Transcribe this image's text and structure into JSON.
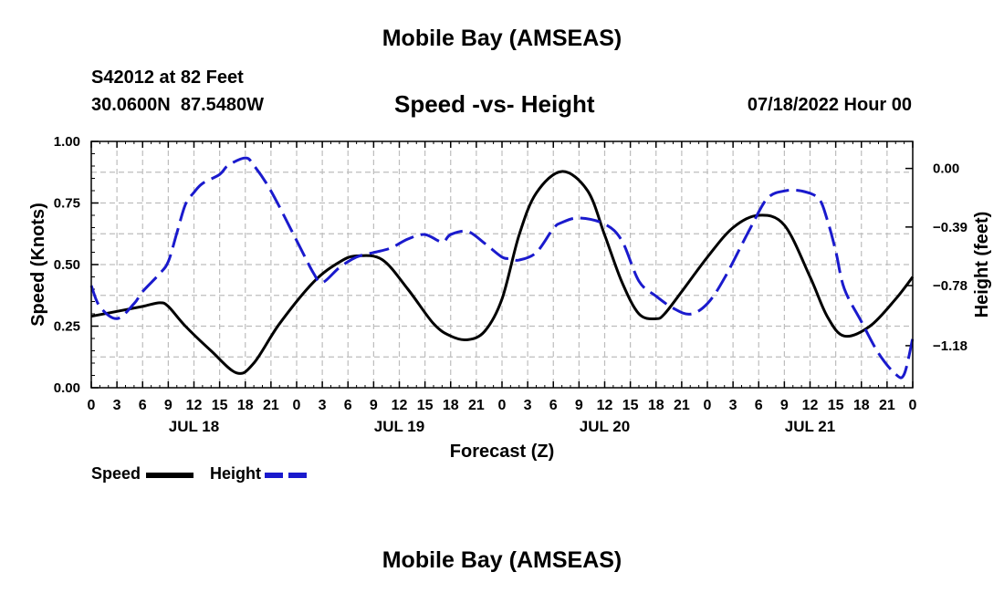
{
  "header": {
    "title": "Mobile Bay (AMSEAS)",
    "station": "S42012 at 82 Feet",
    "location": "30.0600N  87.5480W",
    "subtitle": "Speed -vs- Height",
    "timestamp": "07/18/2022 Hour 00",
    "footer_title": "Mobile Bay (AMSEAS)"
  },
  "legend": {
    "speed_label": "Speed",
    "height_label": "Height"
  },
  "chart_data": {
    "type": "line",
    "title": "Speed -vs- Height",
    "xlabel": "Forecast (Z)",
    "ylabel": "Speed (Knots)",
    "ylabel_right": "Height (feet)",
    "x_hours_range": [
      0,
      96
    ],
    "ylim": [
      0,
      1
    ],
    "ylim_right": [
      -1.46,
      0.18
    ],
    "grid": true,
    "x_tick_labels": [
      "0",
      "3",
      "6",
      "9",
      "12",
      "15",
      "18",
      "21",
      "0",
      "3",
      "6",
      "9",
      "12",
      "15",
      "18",
      "21",
      "0",
      "3",
      "6",
      "9",
      "12",
      "15",
      "18",
      "21",
      "0",
      "3",
      "6",
      "9",
      "12",
      "15",
      "18",
      "21",
      "0"
    ],
    "day_labels": [
      {
        "label": "JUL 18",
        "hour": 12
      },
      {
        "label": "JUL 19",
        "hour": 36
      },
      {
        "label": "JUL 20",
        "hour": 60
      },
      {
        "label": "JUL 21",
        "hour": 84
      }
    ],
    "y_ticks": [
      0.0,
      0.25,
      0.5,
      0.75,
      1.0
    ],
    "y_tick_labels": [
      "0.00",
      "0.25",
      "0.50",
      "0.75",
      "1.00"
    ],
    "y_ticks_right": [
      0.0,
      -0.39,
      -0.78,
      -1.18
    ],
    "y_tick_labels_right": [
      "0.00",
      "−0.39",
      "−0.78",
      "−1.18"
    ],
    "series": [
      {
        "name": "Speed",
        "axis": "left",
        "color": "#000000",
        "dash": "solid",
        "x": [
          0,
          3,
          6,
          8,
          9,
          11,
          14,
          17,
          19,
          22,
          26,
          29,
          31,
          34,
          37,
          40,
          42,
          44,
          46,
          48,
          50,
          52,
          55,
          58,
          60,
          62,
          64,
          66,
          67,
          69,
          72,
          75,
          78,
          81,
          84,
          86,
          88,
          91,
          94,
          96
        ],
        "y": [
          0.29,
          0.31,
          0.33,
          0.345,
          0.33,
          0.25,
          0.15,
          0.06,
          0.1,
          0.26,
          0.43,
          0.51,
          0.535,
          0.52,
          0.4,
          0.26,
          0.21,
          0.195,
          0.23,
          0.36,
          0.62,
          0.79,
          0.878,
          0.8,
          0.62,
          0.43,
          0.3,
          0.28,
          0.3,
          0.39,
          0.53,
          0.65,
          0.7,
          0.66,
          0.45,
          0.29,
          0.21,
          0.25,
          0.36,
          0.45
        ]
      },
      {
        "name": "Height",
        "axis": "right",
        "color": "#1a1acd",
        "dash": "dashed",
        "x": [
          0,
          1,
          3,
          5,
          6,
          8,
          9,
          10,
          11,
          12,
          13,
          15,
          16,
          18,
          19,
          21,
          24,
          26,
          27,
          29,
          31,
          33,
          35,
          37,
          39,
          41,
          42,
          44,
          46,
          48,
          49,
          50,
          52,
          54,
          55,
          57,
          60,
          62,
          64,
          66,
          68,
          70,
          72,
          74,
          77,
          79,
          81,
          83,
          85,
          86,
          87,
          88,
          90,
          92,
          94,
          95,
          96
        ],
        "y": [
          -0.78,
          -0.92,
          -1.0,
          -0.9,
          -0.82,
          -0.7,
          -0.62,
          -0.43,
          -0.24,
          -0.16,
          -0.1,
          -0.04,
          0.02,
          0.07,
          0.02,
          -0.15,
          -0.48,
          -0.7,
          -0.76,
          -0.66,
          -0.59,
          -0.56,
          -0.53,
          -0.47,
          -0.44,
          -0.49,
          -0.44,
          -0.42,
          -0.5,
          -0.59,
          -0.6,
          -0.61,
          -0.56,
          -0.4,
          -0.36,
          -0.33,
          -0.37,
          -0.48,
          -0.75,
          -0.85,
          -0.93,
          -0.97,
          -0.9,
          -0.73,
          -0.4,
          -0.2,
          -0.15,
          -0.15,
          -0.2,
          -0.34,
          -0.55,
          -0.8,
          -1.02,
          -1.23,
          -1.37,
          -1.37,
          -1.13
        ]
      }
    ]
  }
}
